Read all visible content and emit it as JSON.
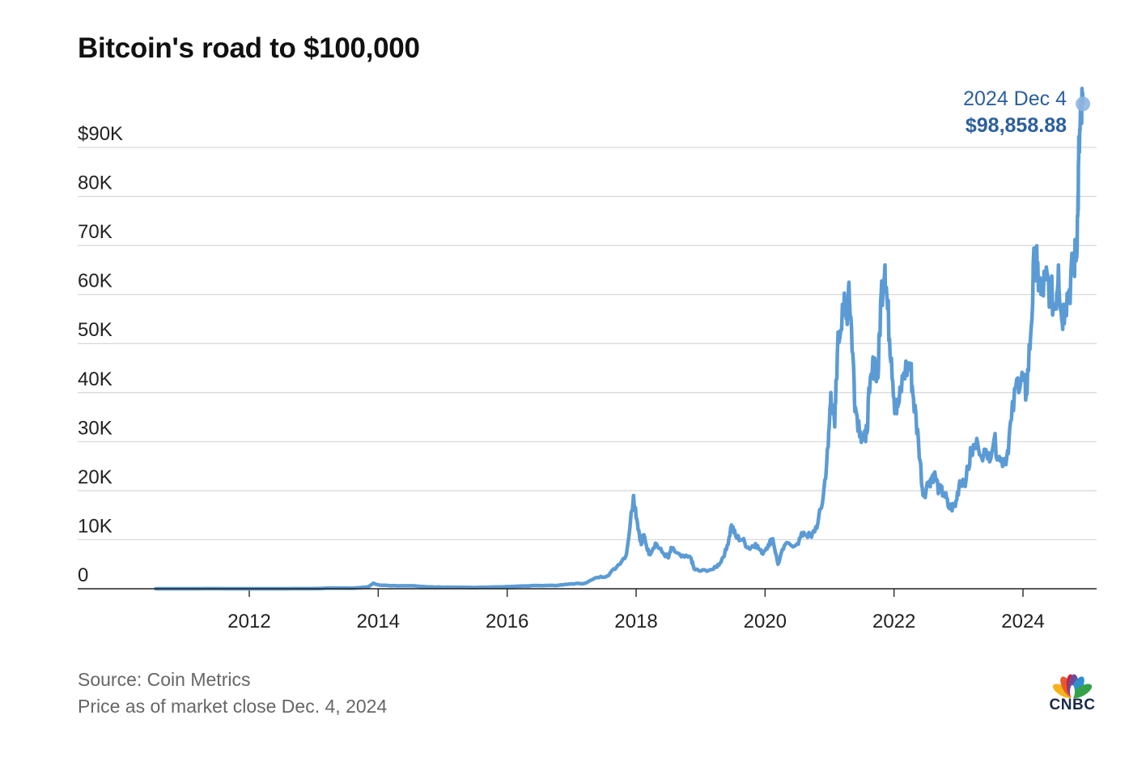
{
  "chart_data": {
    "type": "line",
    "title": "Bitcoin's road to $100,000",
    "xlabel": "",
    "ylabel": "",
    "xlim": [
      2010.55,
      2025.15
    ],
    "ylim": [
      0,
      100000
    ],
    "y_ticks": [
      {
        "value": 0,
        "label": "0"
      },
      {
        "value": 10000,
        "label": "10K"
      },
      {
        "value": 20000,
        "label": "20K"
      },
      {
        "value": 30000,
        "label": "30K"
      },
      {
        "value": 40000,
        "label": "40K"
      },
      {
        "value": 50000,
        "label": "50K"
      },
      {
        "value": 60000,
        "label": "60K"
      },
      {
        "value": 70000,
        "label": "70K"
      },
      {
        "value": 80000,
        "label": "80K"
      },
      {
        "value": 90000,
        "label": "$90K"
      }
    ],
    "x_ticks": [
      {
        "value": 2012,
        "label": "2012"
      },
      {
        "value": 2014,
        "label": "2014"
      },
      {
        "value": 2016,
        "label": "2016"
      },
      {
        "value": 2018,
        "label": "2018"
      },
      {
        "value": 2020,
        "label": "2020"
      },
      {
        "value": 2022,
        "label": "2022"
      },
      {
        "value": 2024,
        "label": "2024"
      }
    ],
    "grid": "horizontal",
    "legend": "none",
    "line_color": "#5b9bd5",
    "annotation": {
      "date_label": "2024 Dec 4",
      "value_label": "$98,858.88",
      "x": 2024.93,
      "y": 98858.88,
      "color": "#2c5f9e"
    },
    "series": [
      {
        "values": [
          [
            2010.55,
            0
          ],
          [
            2011.0,
            0.3
          ],
          [
            2011.45,
            15
          ],
          [
            2011.7,
            5
          ],
          [
            2012.0,
            5
          ],
          [
            2012.5,
            7
          ],
          [
            2013.0,
            13
          ],
          [
            2013.3,
            150
          ],
          [
            2013.6,
            100
          ],
          [
            2013.85,
            400
          ],
          [
            2013.92,
            1100
          ],
          [
            2014.0,
            800
          ],
          [
            2014.2,
            600
          ],
          [
            2014.5,
            600
          ],
          [
            2014.8,
            380
          ],
          [
            2015.0,
            300
          ],
          [
            2015.5,
            250
          ],
          [
            2016.0,
            430
          ],
          [
            2016.5,
            650
          ],
          [
            2016.8,
            700
          ],
          [
            2017.0,
            1000
          ],
          [
            2017.2,
            1100
          ],
          [
            2017.4,
            2300
          ],
          [
            2017.55,
            2600
          ],
          [
            2017.7,
            4500
          ],
          [
            2017.85,
            7000
          ],
          [
            2017.96,
            19000
          ],
          [
            2018.02,
            13500
          ],
          [
            2018.08,
            9000
          ],
          [
            2018.12,
            11000
          ],
          [
            2018.2,
            7000
          ],
          [
            2018.3,
            9300
          ],
          [
            2018.4,
            7500
          ],
          [
            2018.5,
            6300
          ],
          [
            2018.55,
            8200
          ],
          [
            2018.7,
            6500
          ],
          [
            2018.85,
            6300
          ],
          [
            2018.9,
            4000
          ],
          [
            2019.0,
            3600
          ],
          [
            2019.2,
            4000
          ],
          [
            2019.3,
            5200
          ],
          [
            2019.4,
            8000
          ],
          [
            2019.48,
            13000
          ],
          [
            2019.55,
            10500
          ],
          [
            2019.65,
            10000
          ],
          [
            2019.75,
            8200
          ],
          [
            2019.85,
            9200
          ],
          [
            2019.95,
            7200
          ],
          [
            2020.05,
            9000
          ],
          [
            2020.12,
            10200
          ],
          [
            2020.2,
            5000
          ],
          [
            2020.3,
            8800
          ],
          [
            2020.5,
            9200
          ],
          [
            2020.6,
            11500
          ],
          [
            2020.72,
            10500
          ],
          [
            2020.82,
            13500
          ],
          [
            2020.9,
            18500
          ],
          [
            2020.98,
            29000
          ],
          [
            2021.02,
            40000
          ],
          [
            2021.08,
            33000
          ],
          [
            2021.12,
            48000
          ],
          [
            2021.2,
            58000
          ],
          [
            2021.26,
            55000
          ],
          [
            2021.3,
            62500
          ],
          [
            2021.36,
            48000
          ],
          [
            2021.4,
            37000
          ],
          [
            2021.48,
            32000
          ],
          [
            2021.56,
            30000
          ],
          [
            2021.62,
            40000
          ],
          [
            2021.7,
            47000
          ],
          [
            2021.75,
            43000
          ],
          [
            2021.8,
            60000
          ],
          [
            2021.86,
            66000
          ],
          [
            2021.9,
            57000
          ],
          [
            2021.96,
            47000
          ],
          [
            2022.02,
            36000
          ],
          [
            2022.08,
            38000
          ],
          [
            2022.15,
            44000
          ],
          [
            2022.25,
            46000
          ],
          [
            2022.3,
            39000
          ],
          [
            2022.38,
            30000
          ],
          [
            2022.45,
            19000
          ],
          [
            2022.55,
            22000
          ],
          [
            2022.62,
            23500
          ],
          [
            2022.7,
            20000
          ],
          [
            2022.78,
            19500
          ],
          [
            2022.85,
            16500
          ],
          [
            2022.95,
            16800
          ],
          [
            2023.02,
            22000
          ],
          [
            2023.12,
            22500
          ],
          [
            2023.2,
            28000
          ],
          [
            2023.3,
            29500
          ],
          [
            2023.45,
            26500
          ],
          [
            2023.55,
            30300
          ],
          [
            2023.65,
            26000
          ],
          [
            2023.75,
            27000
          ],
          [
            2023.82,
            34500
          ],
          [
            2023.92,
            43000
          ],
          [
            2024.0,
            42500
          ],
          [
            2024.05,
            39500
          ],
          [
            2024.12,
            52000
          ],
          [
            2024.18,
            68000
          ],
          [
            2024.22,
            65000
          ],
          [
            2024.28,
            60000
          ],
          [
            2024.35,
            63000
          ],
          [
            2024.42,
            61000
          ],
          [
            2024.5,
            57000
          ],
          [
            2024.55,
            66000
          ],
          [
            2024.6,
            55000
          ],
          [
            2024.65,
            58000
          ],
          [
            2024.72,
            61000
          ],
          [
            2024.78,
            66000
          ],
          [
            2024.82,
            68000
          ],
          [
            2024.85,
            76000
          ],
          [
            2024.87,
            90000
          ],
          [
            2024.9,
            95000
          ],
          [
            2024.93,
            98858.88
          ]
        ]
      }
    ]
  },
  "footer": {
    "source": "Source: Coin Metrics",
    "note": "Price as of market close Dec. 4, 2024"
  },
  "logo": {
    "icon": "cnbc-peacock-icon",
    "text": "CNBC",
    "colors": [
      "#f5b31b",
      "#e45a2e",
      "#d11f3c",
      "#6b4b9c",
      "#2d8fd0",
      "#35a24a"
    ]
  }
}
